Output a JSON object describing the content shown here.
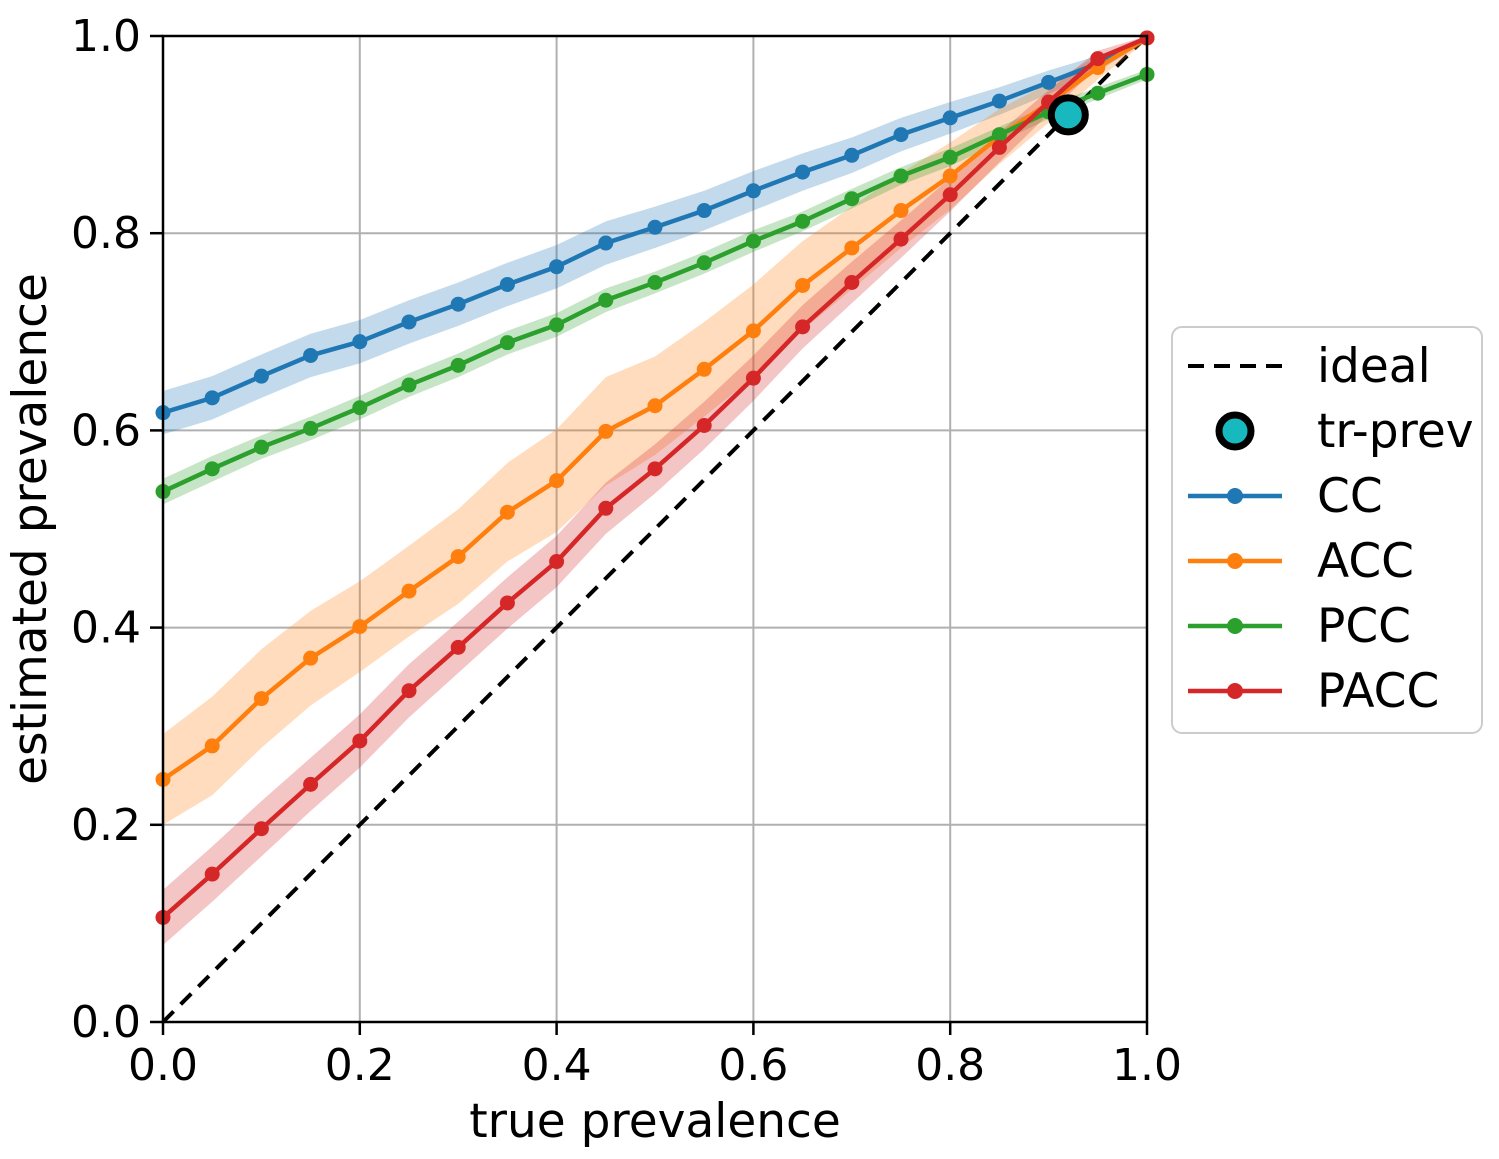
{
  "chart_data": {
    "type": "line",
    "title": "",
    "xlabel": "true prevalence",
    "ylabel": "estimated prevalence",
    "xlim": [
      0.0,
      1.0
    ],
    "ylim": [
      0.0,
      1.0
    ],
    "x_tick_labels": [
      "0.0",
      "0.2",
      "0.4",
      "0.6",
      "0.8",
      "1.0"
    ],
    "y_tick_labels": [
      "0.0",
      "0.2",
      "0.4",
      "0.6",
      "0.8",
      "1.0"
    ],
    "tick_values": [
      0.0,
      0.2,
      0.4,
      0.6,
      0.8,
      1.0
    ],
    "grid": true,
    "grid_color": "#b0b0b0",
    "legend_position": "right-outside",
    "x": [
      0.0,
      0.05,
      0.1,
      0.15,
      0.2,
      0.25,
      0.3,
      0.35,
      0.4,
      0.45,
      0.5,
      0.55,
      0.6,
      0.65,
      0.7,
      0.75,
      0.8,
      0.85,
      0.9,
      0.95,
      1.0
    ],
    "series": [
      {
        "name": "CC",
        "color": "#1f77b4",
        "values": [
          0.618,
          0.633,
          0.655,
          0.676,
          0.69,
          0.71,
          0.728,
          0.748,
          0.766,
          0.79,
          0.806,
          0.823,
          0.843,
          0.862,
          0.879,
          0.9,
          0.917,
          0.934,
          0.953,
          0.972,
          0.998
        ],
        "band_halfwidth": [
          0.022,
          0.022,
          0.022,
          0.022,
          0.022,
          0.022,
          0.022,
          0.022,
          0.022,
          0.022,
          0.021,
          0.02,
          0.02,
          0.019,
          0.018,
          0.017,
          0.016,
          0.014,
          0.012,
          0.008,
          0.003
        ]
      },
      {
        "name": "ACC",
        "color": "#ff7f0e",
        "values": [
          0.246,
          0.28,
          0.328,
          0.369,
          0.401,
          0.437,
          0.472,
          0.517,
          0.549,
          0.599,
          0.625,
          0.662,
          0.701,
          0.747,
          0.785,
          0.823,
          0.858,
          0.898,
          0.932,
          0.968,
          0.998
        ],
        "band_halfwidth": [
          0.046,
          0.05,
          0.05,
          0.048,
          0.046,
          0.046,
          0.048,
          0.05,
          0.052,
          0.055,
          0.05,
          0.048,
          0.047,
          0.045,
          0.042,
          0.038,
          0.034,
          0.028,
          0.02,
          0.012,
          0.003
        ]
      },
      {
        "name": "PCC",
        "color": "#2ca02c",
        "values": [
          0.538,
          0.561,
          0.583,
          0.602,
          0.623,
          0.646,
          0.666,
          0.689,
          0.707,
          0.732,
          0.75,
          0.77,
          0.792,
          0.812,
          0.835,
          0.858,
          0.877,
          0.9,
          0.923,
          0.942,
          0.961
        ],
        "band_halfwidth": [
          0.013,
          0.013,
          0.012,
          0.012,
          0.012,
          0.012,
          0.012,
          0.012,
          0.012,
          0.012,
          0.011,
          0.011,
          0.011,
          0.01,
          0.01,
          0.009,
          0.009,
          0.008,
          0.007,
          0.006,
          0.005
        ]
      },
      {
        "name": "PACC",
        "color": "#d62728",
        "values": [
          0.106,
          0.15,
          0.196,
          0.241,
          0.285,
          0.336,
          0.38,
          0.425,
          0.467,
          0.521,
          0.561,
          0.605,
          0.653,
          0.705,
          0.75,
          0.794,
          0.839,
          0.887,
          0.933,
          0.977,
          0.998
        ],
        "band_halfwidth": [
          0.028,
          0.028,
          0.028,
          0.027,
          0.027,
          0.027,
          0.026,
          0.026,
          0.026,
          0.026,
          0.025,
          0.024,
          0.023,
          0.022,
          0.021,
          0.019,
          0.017,
          0.015,
          0.012,
          0.008,
          0.003
        ]
      }
    ],
    "ideal": {
      "label": "ideal",
      "color": "#000000",
      "style": "dashed",
      "from": [
        0.0,
        0.0
      ],
      "to": [
        1.0,
        1.0
      ]
    },
    "tr_prev": {
      "label": "tr-prev",
      "x": 0.92,
      "y": 0.92,
      "fill": "#17b8be",
      "edge": "#000000"
    },
    "legend_entries": [
      "ideal",
      "tr-prev",
      "CC",
      "ACC",
      "PCC",
      "PACC"
    ]
  }
}
